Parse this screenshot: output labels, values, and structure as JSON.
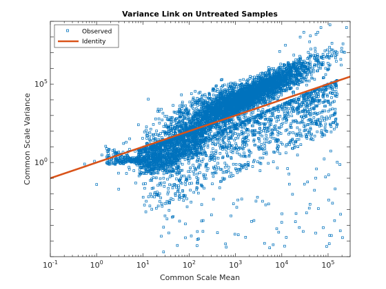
{
  "chart_data": {
    "type": "scatter",
    "title": "Variance Link on Untreated Samples",
    "xlabel": "Common Scale Mean",
    "ylabel": "Common Scale Variance",
    "xscale": "log",
    "yscale": "log",
    "xlim": [
      0.1,
      300000
    ],
    "ylim": [
      1e-06,
      1000000000
    ],
    "grid": false,
    "legend_placement": "top-left",
    "x_ticks": [
      {
        "base": "10",
        "exp": "-1",
        "value": 0.1
      },
      {
        "base": "10",
        "exp": "0",
        "value": 1
      },
      {
        "base": "10",
        "exp": "1",
        "value": 10
      },
      {
        "base": "10",
        "exp": "2",
        "value": 100
      },
      {
        "base": "10",
        "exp": "3",
        "value": 1000
      },
      {
        "base": "10",
        "exp": "4",
        "value": 10000
      },
      {
        "base": "10",
        "exp": "5",
        "value": 100000
      }
    ],
    "y_ticks": [
      {
        "base": "10",
        "exp": "0",
        "value": 1
      },
      {
        "base": "10",
        "exp": "5",
        "value": 100000
      }
    ],
    "series": [
      {
        "name": "Observed",
        "kind": "markers",
        "marker": "square",
        "color": "#0072BD",
        "points": [
          [
            1.0,
            0.04
          ],
          [
            1.3,
            3.0
          ],
          [
            0.55,
            0.8
          ],
          [
            0.9,
            1.2
          ],
          [
            28,
            2e-06
          ],
          [
            150,
            4e-05
          ],
          [
            2500,
            0.0002
          ],
          [
            3400,
            0.3
          ],
          [
            20000,
            20
          ],
          [
            3800,
            800
          ],
          [
            4500,
            0.002
          ],
          [
            800,
            0.0004
          ],
          [
            200,
            0.0002
          ],
          [
            30,
            0.0004
          ],
          [
            25,
            2e-05
          ],
          [
            25000,
            100000000.0
          ],
          [
            55000,
            150000000.0
          ],
          [
            30000,
            200000000.0
          ],
          [
            40000,
            50000000.0
          ],
          [
            12000,
            30000000.0
          ],
          [
            9000,
            12000000.0
          ],
          [
            70000,
            400000000.0
          ],
          [
            250000,
            400000000.0
          ],
          [
            110000,
            600000000.0
          ],
          [
            60000,
            200000000.0
          ],
          [
            100000,
            100000.0
          ],
          [
            5,
            0.5
          ],
          [
            3,
            0.02
          ],
          [
            7,
            0.05
          ],
          [
            12,
            0.2
          ],
          [
            50,
            0.01
          ]
        ]
      },
      {
        "name": "Identity",
        "kind": "line",
        "color": "#D95319",
        "points": [
          [
            0.1,
            0.1
          ],
          [
            300000,
            300000
          ]
        ]
      }
    ]
  }
}
